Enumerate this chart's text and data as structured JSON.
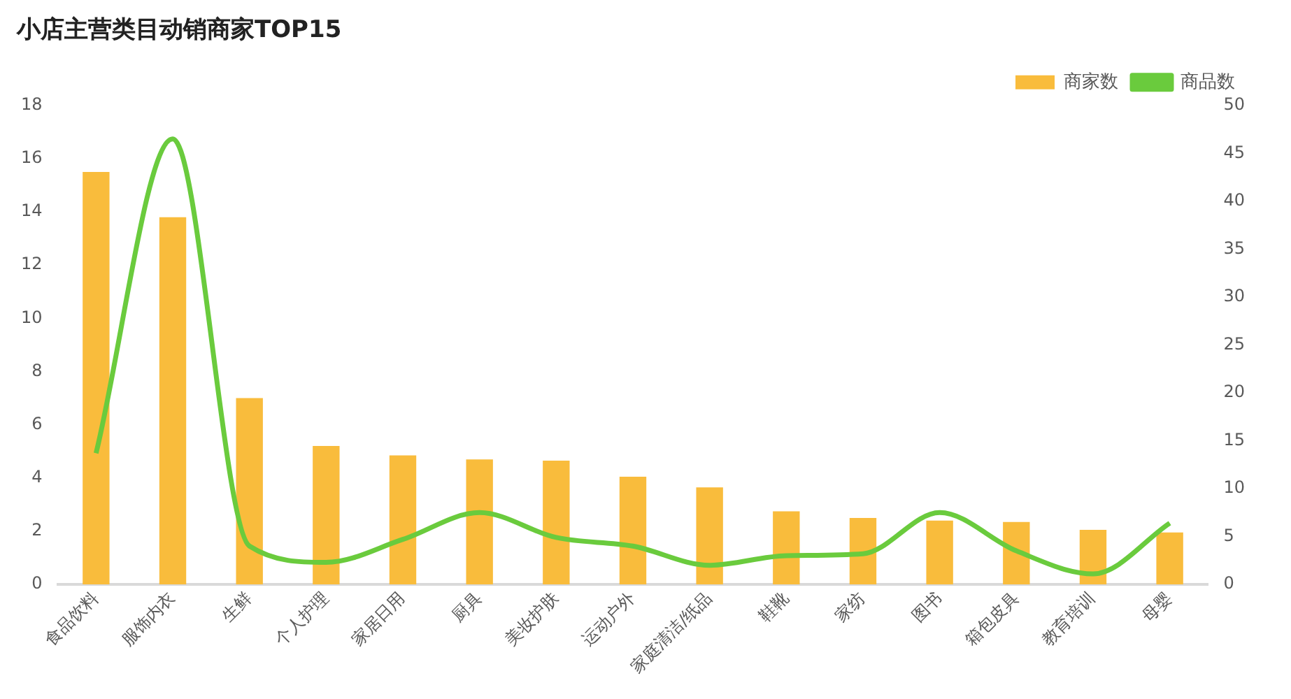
{
  "chart_data": {
    "type": "bar",
    "title": "小店主营类目动销商家TOP15",
    "categories": [
      "食品饮料",
      "服饰内衣",
      "生鲜",
      "个人护理",
      "家居日用",
      "厨具",
      "美妆护肤",
      "运动户外",
      "家庭清洁/纸品",
      "鞋靴",
      "家纺",
      "图书",
      "箱包皮具",
      "教育培训",
      "母婴"
    ],
    "series": [
      {
        "name": "商家数",
        "color": "#f9bc3c",
        "values": [
          15.5,
          13.8,
          7.0,
          5.2,
          4.85,
          4.7,
          4.65,
          4.05,
          3.65,
          2.75,
          2.5,
          2.4,
          2.35,
          2.05,
          1.95
        ]
      },
      {
        "name": "商品数",
        "type": "line",
        "axis": "y2",
        "color": "#6acb3d",
        "values": [
          13.7,
          46.5,
          4.0,
          2.3,
          4.7,
          7.5,
          4.9,
          4.0,
          2.0,
          3.0,
          3.2,
          7.5,
          3.5,
          1.1,
          6.4
        ]
      }
    ],
    "ylim": [
      0,
      18
    ],
    "yticks": [
      0,
      2,
      4,
      6,
      8,
      10,
      12,
      14,
      16,
      18
    ],
    "y2lim": [
      0,
      50
    ],
    "y2ticks": [
      0,
      5,
      10,
      15,
      20,
      25,
      30,
      35,
      40,
      45,
      50
    ],
    "legend": "top right",
    "grid": false,
    "marker": "none"
  }
}
